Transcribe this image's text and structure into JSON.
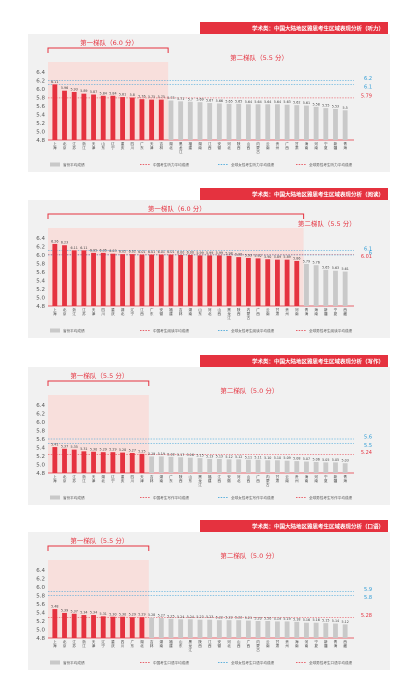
{
  "colors": {
    "accent": "#e5323f",
    "gray_bar": "#c9c9c9",
    "blue_line": "#2b9bd6",
    "tier_fill": "#f9dcd8",
    "panel_bg": "#f1f1f1"
  },
  "legend": {
    "province_avg": "省份平均成绩"
  },
  "chart_data": [
    {
      "type": "bar",
      "title": "学术类：中国大陆地区雅思考生区域表现分析（听力）",
      "tier1_label": "第一梯队（6.0 分）",
      "tier2_label": "第二梯队（5.5 分）",
      "legend_labels": [
        "中国考生听力平均成绩",
        "全球女性考生听力平均成绩",
        "全球男性考生听力平均成绩"
      ],
      "ylim": [
        4.8,
        6.4
      ],
      "yticks": [
        "4.8",
        "5.0",
        "5.2",
        "5.4",
        "5.6",
        "5.8",
        "6.0",
        "6.2",
        "6.4"
      ],
      "reference_lines": [
        {
          "value": 6.2,
          "color": "blue"
        },
        {
          "value": 6.1,
          "color": "blue"
        },
        {
          "value": 5.79,
          "color": "red"
        }
      ],
      "tier1_count": 12,
      "categories": [
        "上海",
        "北京",
        "江苏",
        "浙江",
        "天津",
        "山东",
        "辽宁",
        "重庆",
        "四川",
        "广东",
        "天津",
        "吉林",
        "湖北",
        "黑龙江",
        "福建",
        "湖南",
        "江西",
        "安徽",
        "河北",
        "陕西",
        "山西",
        "内蒙古",
        "云南",
        "贵州",
        "广西",
        "甘肃",
        "海南",
        "河南",
        "宁夏",
        "新疆",
        "青海"
      ],
      "values": [
        6.11,
        5.96,
        5.93,
        5.89,
        5.87,
        5.84,
        5.84,
        5.81,
        5.8,
        5.76,
        5.75,
        5.75,
        5.73,
        5.71,
        5.7,
        5.69,
        5.67,
        5.66,
        5.65,
        5.65,
        5.64,
        5.64,
        5.64,
        5.64,
        5.63,
        5.62,
        5.61,
        5.58,
        5.55,
        5.53,
        5.5
      ],
      "data_labels": [
        "6.11",
        "5.96",
        "5.93",
        "5.89",
        "5.87",
        "5.84",
        "5.84",
        "5.81",
        "5.8",
        "5.76",
        "5.75",
        "5.75",
        "5.73",
        "5.71",
        "5.7",
        "5.69",
        "5.67",
        "5.66",
        "5.65",
        "5.65",
        "5.64",
        "5.64",
        "5.64",
        "5.64",
        "5.63",
        "5.62",
        "5.61",
        "5.58",
        "5.55",
        "5.53",
        "5.5"
      ]
    },
    {
      "type": "bar",
      "title": "学术类：中国大陆地区雅思考生区域表现分析（阅读）",
      "tier1_label": "第一梯队（6.0 分）",
      "tier2_label": "第二梯队（5.5 分）",
      "legend_labels": [
        "中国考生阅读平均成绩",
        "全球女性考生阅读平均成绩",
        "全球男性考生阅读平均成绩"
      ],
      "ylim": [
        4.8,
        6.4
      ],
      "yticks": [
        "4.8",
        "5.0",
        "5.2",
        "5.4",
        "5.6",
        "5.8",
        "6.0",
        "6.2",
        "6.4"
      ],
      "reference_lines": [
        {
          "value": 6.1,
          "color": "blue"
        },
        {
          "value": 6.01,
          "color": "red"
        },
        {
          "value": 6.0,
          "color": "blue"
        }
      ],
      "tier1_count": 26,
      "categories": [
        "上海",
        "北京",
        "浙江",
        "江苏",
        "天津",
        "四川",
        "重庆",
        "湖北",
        "辽宁",
        "江西",
        "广东",
        "安徽",
        "福建",
        "吉林",
        "湖南",
        "山东",
        "河北",
        "山西",
        "黑龙江",
        "陕西",
        "内蒙古",
        "广西",
        "云南",
        "甘肃",
        "贵州",
        "河南",
        "青海",
        "海南",
        "新疆",
        "宁夏",
        "西藏"
      ],
      "values": [
        6.26,
        6.23,
        6.11,
        6.11,
        6.05,
        6.05,
        6.03,
        6.02,
        6.02,
        6.01,
        6.01,
        6.01,
        6.01,
        6.0,
        6.0,
        5.99,
        5.99,
        5.99,
        5.98,
        5.95,
        5.93,
        5.92,
        5.9,
        5.89,
        5.89,
        5.86,
        5.79,
        5.76,
        5.65,
        5.63,
        5.61
      ],
      "data_labels": [
        "6.26",
        "6.23",
        "6.11",
        "6.11",
        "6.05",
        "6.05",
        "6.03",
        "6.02",
        "6.02",
        "6.01",
        "6.01",
        "6.01",
        "6.01",
        "6.00",
        "6.00",
        "5.99",
        "5.99",
        "5.99",
        "5.98",
        "5.95",
        "5.93",
        "5.92",
        "5.90",
        "5.89",
        "5.89",
        "5.86",
        "5.79",
        "5.76",
        "5.65",
        "5.63",
        "5.61"
      ]
    },
    {
      "type": "bar",
      "title": "学术类：中国大陆地区雅思考生区域表现分析（写作）",
      "tier1_label": "第一梯队（5.5 分）",
      "tier2_label": "第二梯队（5.0 分）",
      "legend_labels": [
        "中国考生写作平均成绩",
        "全球女性考生写作平均成绩",
        "全球男性考生写作平均成绩"
      ],
      "ylim": [
        4.8,
        6.4
      ],
      "yticks": [
        "4.8",
        "5.0",
        "5.2",
        "5.4",
        "5.6",
        "5.8",
        "6.0",
        "6.2",
        "6.4"
      ],
      "reference_lines": [
        {
          "value": 5.6,
          "color": "blue"
        },
        {
          "value": 5.5,
          "color": "blue"
        },
        {
          "value": 5.24,
          "color": "red"
        }
      ],
      "tier1_count": 10,
      "categories": [
        "上海",
        "北京",
        "江苏",
        "浙江",
        "天津",
        "湖北",
        "辽宁",
        "重庆",
        "四川",
        "天津",
        "吉林",
        "湖南",
        "广东",
        "陕西",
        "山东",
        "黑龙江",
        "福建",
        "江西",
        "安徽",
        "河北",
        "山西",
        "广西",
        "内蒙古",
        "甘肃",
        "云南",
        "贵州",
        "海南",
        "河南",
        "宁夏",
        "新疆",
        "青海"
      ],
      "values": [
        5.41,
        5.37,
        5.35,
        5.31,
        5.3,
        5.29,
        5.29,
        5.28,
        5.27,
        5.25,
        5.19,
        5.19,
        5.18,
        5.17,
        5.16,
        5.15,
        5.13,
        5.13,
        5.12,
        5.12,
        5.11,
        5.11,
        5.1,
        5.1,
        5.09,
        5.08,
        5.07,
        5.06,
        5.05,
        5.05,
        5.03
      ],
      "data_labels": [
        "5.41",
        "5.37",
        "5.35",
        "5.31",
        "5.30",
        "5.29",
        "5.29",
        "5.28",
        "5.27",
        "5.25",
        "5.19",
        "5.19",
        "5.18",
        "5.17",
        "5.16",
        "5.15",
        "5.13",
        "5.13",
        "5.12",
        "5.12",
        "5.11",
        "5.11",
        "5.10",
        "5.10",
        "5.09",
        "5.08",
        "5.07",
        "5.06",
        "5.05",
        "5.05",
        "5.03"
      ]
    },
    {
      "type": "bar",
      "title": "学术类：中国大陆地区雅思考生区域表现分析（口语）",
      "tier1_label": "第一梯队（5.5 分）",
      "tier2_label": "第二梯队（5.0 分）",
      "legend_labels": [
        "中国考生口语平均成绩",
        "全球女性考生口语平均成绩",
        "全球男性考生口语平均成绩"
      ],
      "ylim": [
        4.8,
        6.4
      ],
      "yticks": [
        "4.8",
        "5.0",
        "5.2",
        "5.4",
        "5.6",
        "5.8",
        "6.0",
        "6.2",
        "6.4"
      ],
      "reference_lines": [
        {
          "value": 5.9,
          "color": "blue"
        },
        {
          "value": 5.8,
          "color": "blue"
        },
        {
          "value": 5.28,
          "color": "red"
        }
      ],
      "tier1_count": 10,
      "categories": [
        "上海",
        "北京",
        "江苏",
        "浙江",
        "天津",
        "辽宁",
        "重庆",
        "四川",
        "广东",
        "湖北",
        "吉林",
        "湖南",
        "福建",
        "山东",
        "黑龙江",
        "陕西",
        "江西",
        "安徽",
        "河北",
        "山西",
        "广西",
        "内蒙古",
        "云南",
        "甘肃",
        "贵州",
        "海南",
        "河南",
        "宁夏",
        "新疆",
        "青海",
        "西藏"
      ],
      "values": [
        5.48,
        5.39,
        5.37,
        5.34,
        5.34,
        5.31,
        5.3,
        5.3,
        5.29,
        5.29,
        5.28,
        5.27,
        5.25,
        5.24,
        5.24,
        5.23,
        5.23,
        5.22,
        5.22,
        5.22,
        5.21,
        5.2,
        5.2,
        5.19,
        5.19,
        5.18,
        5.16,
        5.16,
        5.15,
        5.14,
        5.12
      ],
      "data_labels": [
        "5.48",
        "5.39",
        "5.37",
        "5.34",
        "5.34",
        "5.31",
        "5.30",
        "5.30",
        "5.29",
        "5.29",
        "5.28",
        "5.27",
        "5.25",
        "5.24",
        "5.24",
        "5.23",
        "5.23",
        "5.22",
        "5.22",
        "5.22",
        "5.21",
        "5.20",
        "5.20",
        "5.19",
        "5.19",
        "5.18",
        "5.16",
        "5.16",
        "5.15",
        "5.14",
        "5.12"
      ]
    }
  ]
}
